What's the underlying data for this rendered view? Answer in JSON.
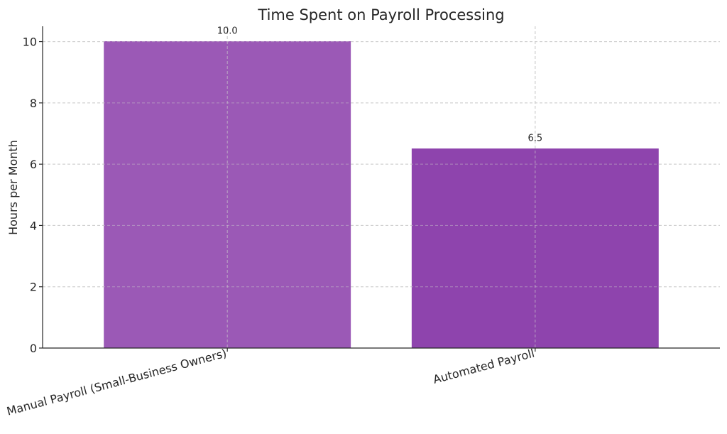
{
  "chart_data": {
    "type": "bar",
    "title": "Time Spent on Payroll Processing",
    "xlabel": "",
    "ylabel": "Hours per Month",
    "categories": [
      "Manual Payroll (Small-Business Owners)",
      "Automated Payroll"
    ],
    "values": [
      10.0,
      6.5
    ],
    "data_labels": [
      "10.0",
      "6.5"
    ],
    "bar_colors": [
      "#9b59b6",
      "#8e44ad"
    ],
    "ylim": [
      0,
      10.5
    ],
    "yticks": [
      0,
      2,
      4,
      6,
      8,
      10
    ],
    "grid": true
  }
}
